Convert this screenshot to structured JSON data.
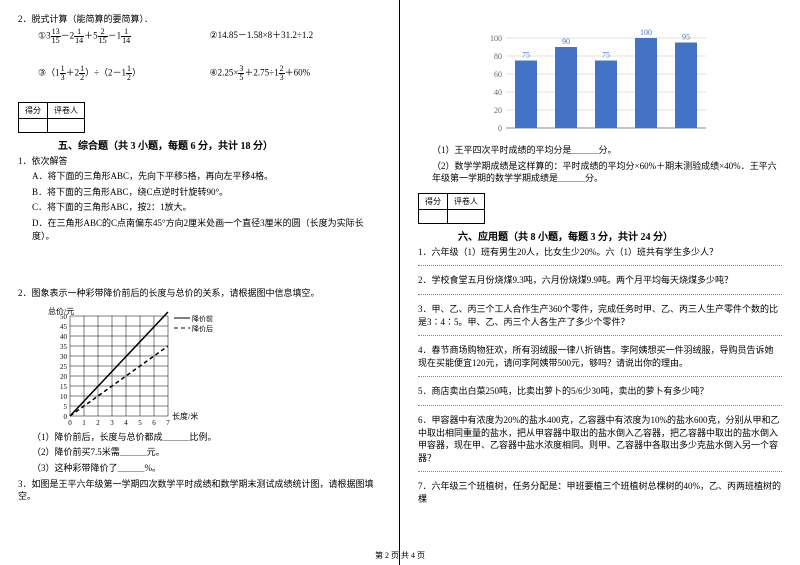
{
  "left": {
    "p2_label": "2．脱式计算（能简算的要简算）．",
    "formulas": {
      "a": {
        "num1": "①3",
        "f1n": "13",
        "f1d": "15",
        "op1": "－2",
        "f2n": "1",
        "f2d": "14",
        "op2": "＋5",
        "f3n": "2",
        "f3d": "15",
        "op3": "－1",
        "f4n": "1",
        "f4d": "14"
      },
      "b": "②14.85－1.58×8＋31.2÷1.2",
      "c": {
        "pre": "③（1",
        "f1n": "1",
        "f1d": "3",
        "mid1": "＋2",
        "f2n": "1",
        "f2d": "2",
        "mid2": "）÷（2－1",
        "f3n": "1",
        "f3d": "2",
        "post": "）"
      },
      "d": {
        "pre": "④2.25×",
        "f1n": "3",
        "f1d": "5",
        "mid": "＋2.75÷1",
        "f2n": "2",
        "f2d": "3",
        "post": "＋60%"
      }
    },
    "score_box": {
      "h1": "得分",
      "h2": "评卷人"
    },
    "sec5_title": "五、综合题（共 3 小题，每题 6 分，共计 18 分）",
    "q1_label": "1．依次解答",
    "q1_a": "A．将下面的三角形ABC，先向下平移5格，再向左平移4格。",
    "q1_b": "B．将下面的三角形ABC，绕C点逆时针旋转90°。",
    "q1_c": "C．将下面的三角形ABC，按2：1放大。",
    "q1_d": "D．在三角形ABC的C点南偏东45°方向2厘米处画一个直径3厘米的圆（长度为实际长度）。",
    "q2_label": "2．图象表示一种彩带降价前后的长度与总价的关系，请根据图中信息填空。",
    "line_chart": {
      "xlabel": "长度/米",
      "ylabel": "总价/元",
      "legend_a": "降价前",
      "legend_b": "降价后",
      "xticks": [
        "0",
        "1",
        "2",
        "3",
        "4",
        "5",
        "6",
        "7"
      ],
      "yticks": [
        "0",
        "5",
        "10",
        "15",
        "20",
        "25",
        "30",
        "35",
        "40",
        "45",
        "50"
      ],
      "line_before": [
        [
          0,
          0
        ],
        [
          7,
          52
        ]
      ],
      "line_after": [
        [
          0,
          0
        ],
        [
          7,
          35
        ]
      ],
      "dash_style": "4,3",
      "solid_color": "#000",
      "grid_color": "#000"
    },
    "q2_1": "（1）降价前后，长度与总价都成＿＿＿比例。",
    "q2_2": "（2）降价前买7.5米需＿＿＿元。",
    "q2_3": "（3）这种彩带降价了＿＿＿%。",
    "q3_label": "3．如图是王平六年级第一学期四次数学平时成绩和数学期末测试成绩统计图，请根据图填空。"
  },
  "right": {
    "bar_chart": {
      "categories": [
        "",
        "",
        "",
        "",
        ""
      ],
      "values": [
        75,
        90,
        75,
        100,
        95
      ],
      "bar_color": "#4473c5",
      "grid_color": "#d9d9d9",
      "axis_color": "#888",
      "text_color": "#4473c5",
      "ylim": [
        0,
        120
      ],
      "yticks": [
        0,
        20,
        40,
        60,
        80,
        100
      ]
    },
    "q_bar_1": "（1）王平四次平时成绩的平均分是＿＿＿分。",
    "q_bar_2": "（2）数学学期成绩是这样算的：平时成绩的平均分×60%＋期末测验成绩×40%．王平六年级第一学期的数学学期成绩是＿＿＿分。",
    "score_box": {
      "h1": "得分",
      "h2": "评卷人"
    },
    "sec6_title": "六、应用题（共 8 小题，每题 3 分，共计 24 分）",
    "q1": "1．六年级（1）班有男生20人，比女生少20%。六（1）班共有学生多少人？",
    "q2": "2．学校食堂五月份烧煤9.3吨，六月份烧煤9.9吨。两个月平均每天烧煤多少吨？",
    "q3": "3．甲、乙、丙三个工人合作生产360个零件，完成任务时甲、乙、丙三人生产零件个数的比是3∶4∶5。甲、乙、丙三个人各生产了多少个零件？",
    "q4": "4．春节商场购物狂欢，所有羽绒服一律八折销售。李阿姨想买一件羽绒服，导购员告诉她现在买能便宜120元，请问李阿姨带500元，够吗？请说出你的理由。",
    "q5": "5．商店卖出白菜250吨，比卖出萝卜的5/6少30吨，卖出的萝卜有多少吨？",
    "q6": "6．甲容器中有浓度为20%的盐水400克，乙容器中有浓度为10%的盐水600克，分别从甲和乙中取出相同重量的盐水，把从甲容器中取出的盐水倒入乙容器，把乙容器中取出的盐水倒入甲容器，现在甲、乙容器中盐水浓度相同。则甲、乙容器中各取出多少克盐水倒入另一个容器？",
    "q7": "7．六年级三个班植树，任务分配是：甲班要植三个班植树总棵树的40%，乙、丙两班植树的棵"
  },
  "footer": "第 2 页 共 4 页"
}
